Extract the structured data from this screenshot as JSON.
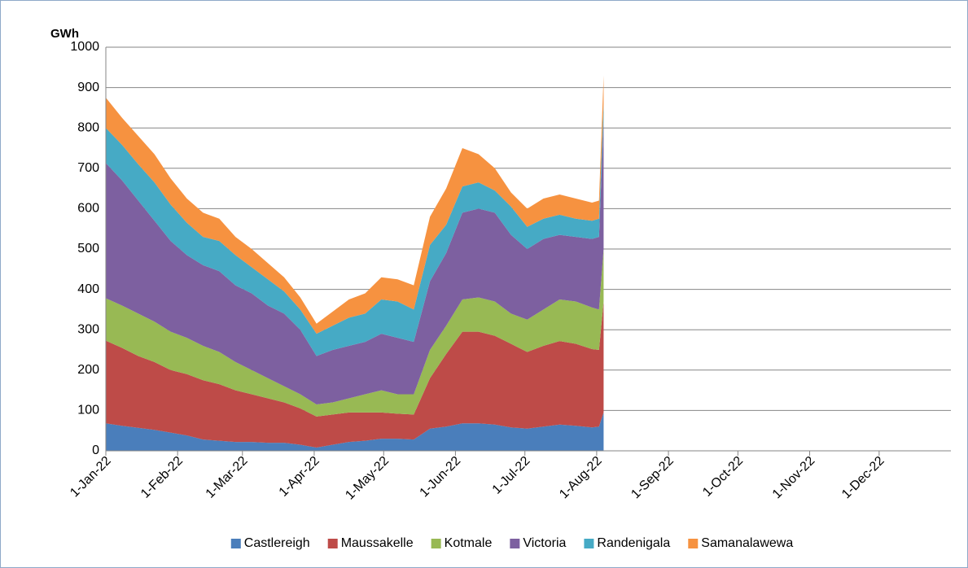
{
  "chart_data": {
    "type": "stacked-area",
    "y_label": "GWh",
    "x": [
      "2022-01-01",
      "2022-01-08",
      "2022-01-15",
      "2022-01-22",
      "2022-01-29",
      "2022-02-05",
      "2022-02-12",
      "2022-02-19",
      "2022-02-26",
      "2022-03-05",
      "2022-03-12",
      "2022-03-19",
      "2022-03-26",
      "2022-04-02",
      "2022-04-09",
      "2022-04-16",
      "2022-04-23",
      "2022-04-30",
      "2022-05-07",
      "2022-05-14",
      "2022-05-21",
      "2022-05-28",
      "2022-06-04",
      "2022-06-11",
      "2022-06-18",
      "2022-06-25",
      "2022-07-02",
      "2022-07-09",
      "2022-07-16",
      "2022-07-23",
      "2022-07-30",
      "2022-08-02",
      "2022-08-04"
    ],
    "series": [
      {
        "name": "Castlereigh",
        "color": "#4a7ebb",
        "values": [
          68,
          62,
          57,
          52,
          45,
          38,
          28,
          25,
          22,
          22,
          20,
          20,
          15,
          8,
          15,
          22,
          25,
          30,
          30,
          28,
          55,
          60,
          68,
          68,
          65,
          58,
          55,
          60,
          65,
          62,
          58,
          60,
          95
        ]
      },
      {
        "name": "Maussakelle",
        "color": "#be4b48",
        "values": [
          205,
          193,
          178,
          168,
          155,
          152,
          147,
          140,
          128,
          118,
          110,
          100,
          90,
          77,
          75,
          73,
          70,
          65,
          62,
          62,
          125,
          180,
          227,
          227,
          220,
          207,
          190,
          200,
          207,
          203,
          194,
          190,
          275
        ]
      },
      {
        "name": "Kotmale",
        "color": "#98b954",
        "values": [
          105,
          105,
          105,
          100,
          95,
          90,
          85,
          80,
          70,
          60,
          50,
          40,
          35,
          30,
          30,
          35,
          45,
          55,
          48,
          50,
          70,
          70,
          80,
          85,
          85,
          75,
          80,
          90,
          103,
          105,
          103,
          100,
          130
        ]
      },
      {
        "name": "Victoria",
        "color": "#7d60a0",
        "values": [
          335,
          310,
          280,
          250,
          225,
          205,
          200,
          200,
          190,
          190,
          180,
          180,
          160,
          120,
          130,
          130,
          130,
          140,
          140,
          130,
          170,
          180,
          215,
          220,
          220,
          195,
          175,
          175,
          160,
          160,
          170,
          180,
          320
        ]
      },
      {
        "name": "Randenigala",
        "color": "#46aac5",
        "values": [
          87,
          88,
          90,
          95,
          90,
          80,
          70,
          75,
          75,
          65,
          65,
          55,
          50,
          55,
          60,
          70,
          70,
          85,
          90,
          80,
          90,
          70,
          65,
          65,
          55,
          70,
          55,
          50,
          50,
          45,
          45,
          45,
          40
        ]
      },
      {
        "name": "Samanalawewa",
        "color": "#f69240",
        "values": [
          75,
          67,
          70,
          70,
          65,
          60,
          60,
          55,
          45,
          45,
          40,
          35,
          30,
          25,
          35,
          45,
          50,
          55,
          55,
          60,
          70,
          90,
          95,
          70,
          55,
          35,
          45,
          50,
          50,
          50,
          45,
          45,
          70
        ]
      }
    ],
    "xlim": [
      "2022-01-01",
      "2023-01-01"
    ],
    "xticks": [
      {
        "value": "2022-01-01",
        "label": "1-Jan-22"
      },
      {
        "value": "2022-02-01",
        "label": "1-Feb-22"
      },
      {
        "value": "2022-03-01",
        "label": "1-Mar-22"
      },
      {
        "value": "2022-04-01",
        "label": "1-Apr-22"
      },
      {
        "value": "2022-05-01",
        "label": "1-May-22"
      },
      {
        "value": "2022-06-01",
        "label": "1-Jun-22"
      },
      {
        "value": "2022-07-01",
        "label": "1-Jul-22"
      },
      {
        "value": "2022-08-01",
        "label": "1-Aug-22"
      },
      {
        "value": "2022-09-01",
        "label": "1-Sep-22"
      },
      {
        "value": "2022-10-01",
        "label": "1-Oct-22"
      },
      {
        "value": "2022-11-01",
        "label": "1-Nov-22"
      },
      {
        "value": "2022-12-01",
        "label": "1-Dec-22"
      }
    ],
    "ylim": [
      0,
      1000
    ],
    "yticks": [
      0,
      100,
      200,
      300,
      400,
      500,
      600,
      700,
      800,
      900,
      1000
    ],
    "grid": true,
    "legend": "bottom"
  }
}
